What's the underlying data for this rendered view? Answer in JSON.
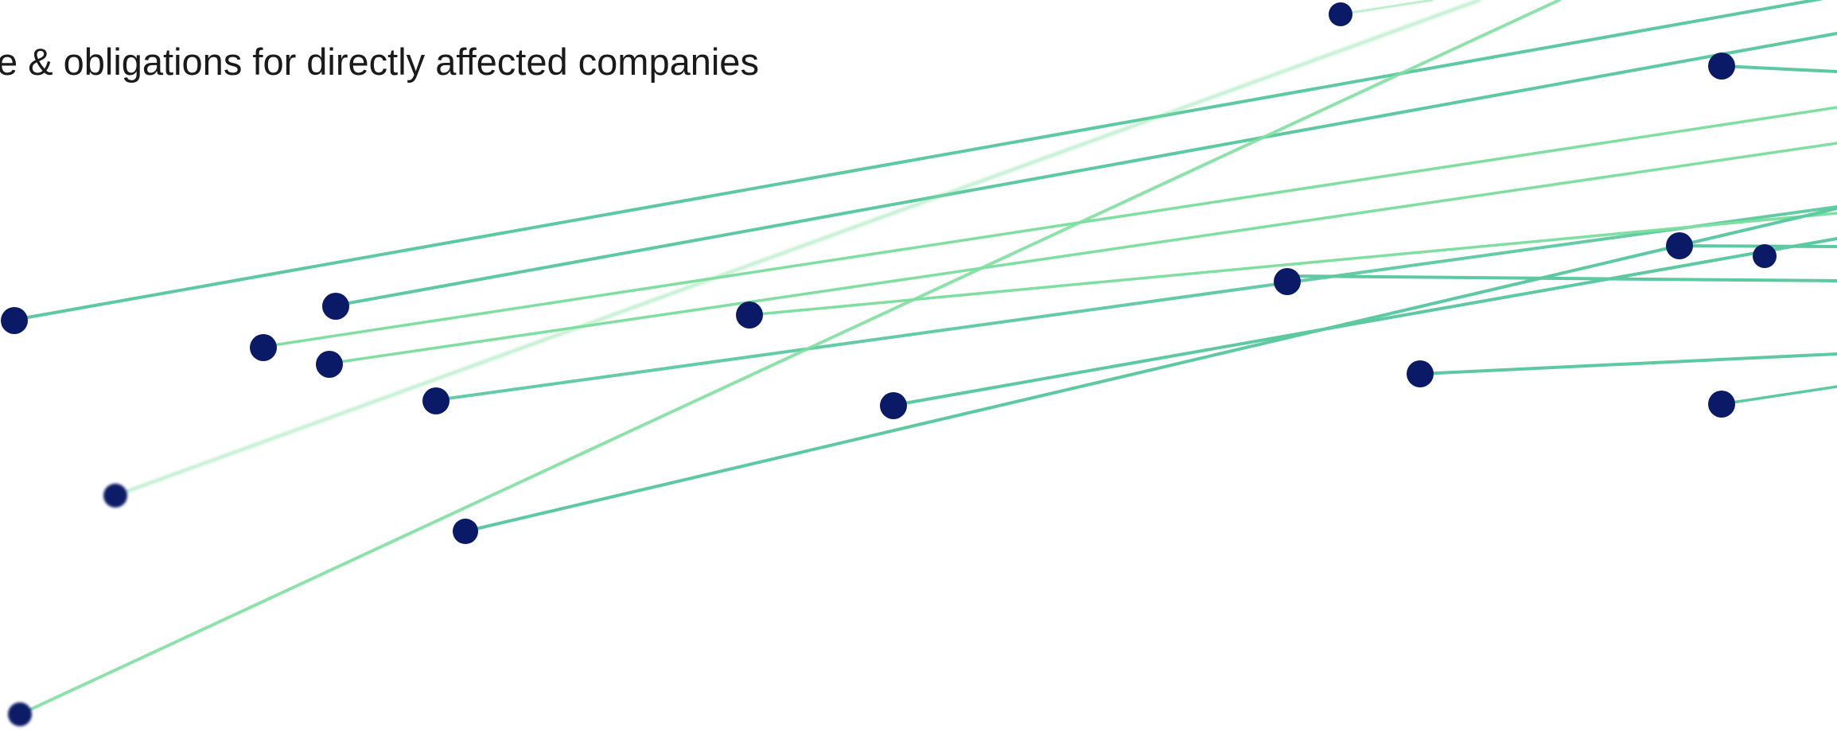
{
  "slide": {
    "title_fragment": "e & obligations for directly affected companies"
  },
  "colors": {
    "background": "#ffffff",
    "text": "#1a1a1a",
    "line": "#7fdfa0",
    "line_dark": "#5cc9a0",
    "node": "#0a1a66"
  },
  "decoration": {
    "type": "network-lines-and-nodes"
  }
}
